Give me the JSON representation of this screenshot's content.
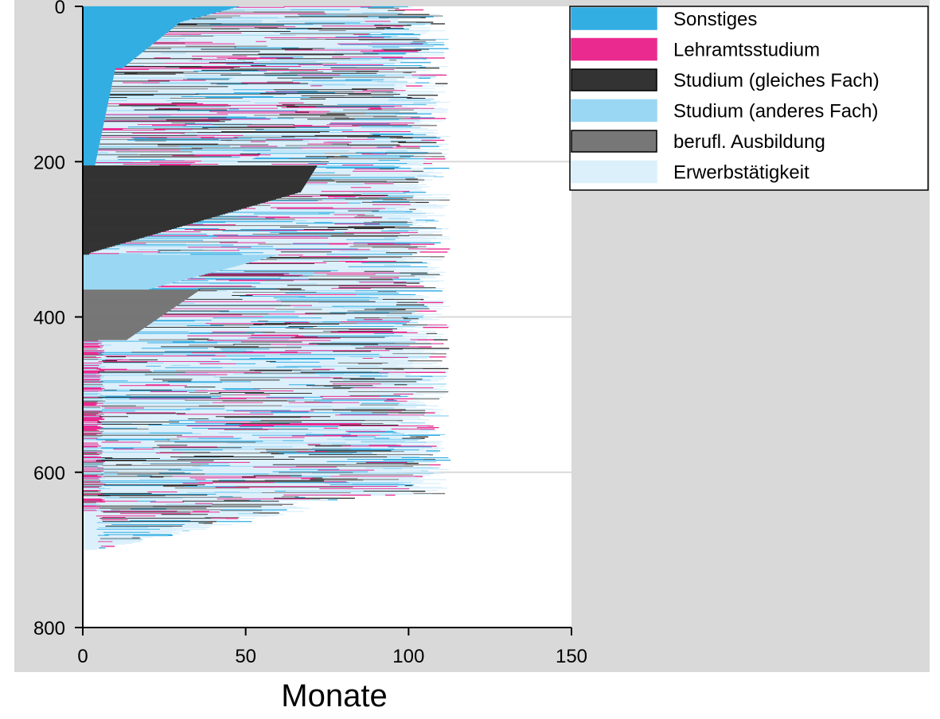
{
  "chart_data": {
    "type": "sequence-index",
    "title": "",
    "xlabel": "Monate",
    "ylabel": "",
    "xlim": [
      0,
      150
    ],
    "ylim": [
      0,
      800
    ],
    "y_inverted": true,
    "x_ticks": [
      0,
      50,
      100,
      150
    ],
    "y_ticks": [
      0,
      200,
      400,
      600,
      800
    ],
    "x_tick_labels": [
      "0",
      "50",
      "100",
      "150"
    ],
    "y_tick_labels": [
      "0",
      "200",
      "400",
      "600",
      "800"
    ],
    "legend_position": "top-right",
    "grid": "horizontal-at-200-400-600",
    "states": [
      {
        "name": "Sonstiges",
        "color": "#33aee3"
      },
      {
        "name": "Lehramtsstudium",
        "color": "#ea2a8f"
      },
      {
        "name": "Studium (gleiches Fach)",
        "color": "#333333"
      },
      {
        "name": "Studium (anderes Fach)",
        "color": "#9ad7f3"
      },
      {
        "name": "berufl. Ausbildung",
        "color": "#777777"
      },
      {
        "name": "Erwerbstätigkeit",
        "color": "#dcf0fb"
      }
    ],
    "groups": [
      {
        "start_state": "Sonstiges",
        "from_seq": 0,
        "to_seq": 205
      },
      {
        "start_state": "Studium (gleiches Fach)",
        "from_seq": 205,
        "to_seq": 320
      },
      {
        "start_state": "Studium (anderes Fach)",
        "from_seq": 320,
        "to_seq": 365
      },
      {
        "start_state": "berufl. Ausbildung",
        "from_seq": 365,
        "to_seq": 430
      },
      {
        "start_state": "Lehramtsstudium / Erwerbstätigkeit",
        "from_seq": 430,
        "to_seq": 700
      }
    ],
    "max_sequences": 700,
    "max_months": 115
  },
  "colors": {
    "panel_background": "#d9d9d9",
    "plot_background": "#ffffff",
    "gridline": "#d9d9d9",
    "axis": "#000000"
  }
}
